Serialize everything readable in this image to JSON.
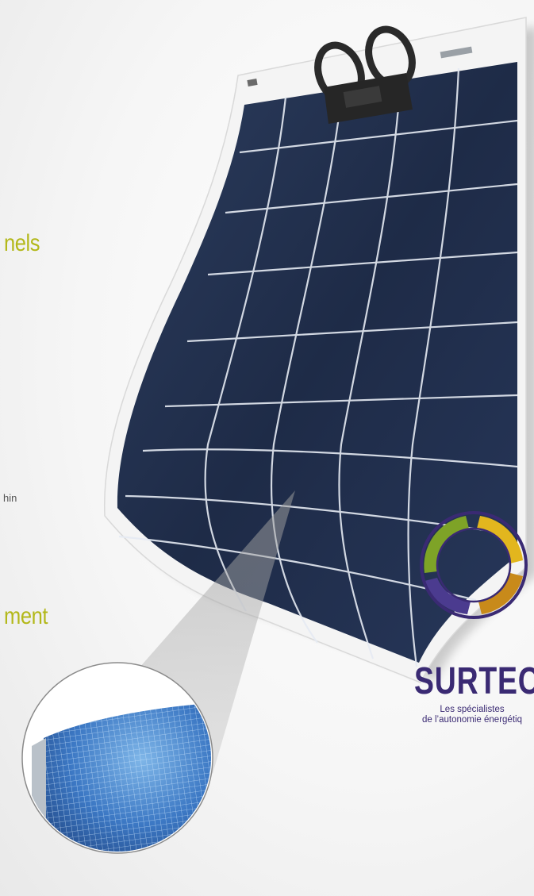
{
  "headline_fragment_top": "nels",
  "body_text_fragment": "hin",
  "headline_fragment_bottom": "ment",
  "logo": {
    "brand": "SURTEC",
    "tagline_line1": "Les spécialistes",
    "tagline_line2": "de l’autonomie énergétiq"
  },
  "colors": {
    "headline": "#b3b81a",
    "panel_cell": "#22304d",
    "panel_frame": "#f4f4f4",
    "logo_purple": "#3a2a73",
    "logo_green": "#7ea327",
    "logo_yellow": "#e2b61e"
  }
}
